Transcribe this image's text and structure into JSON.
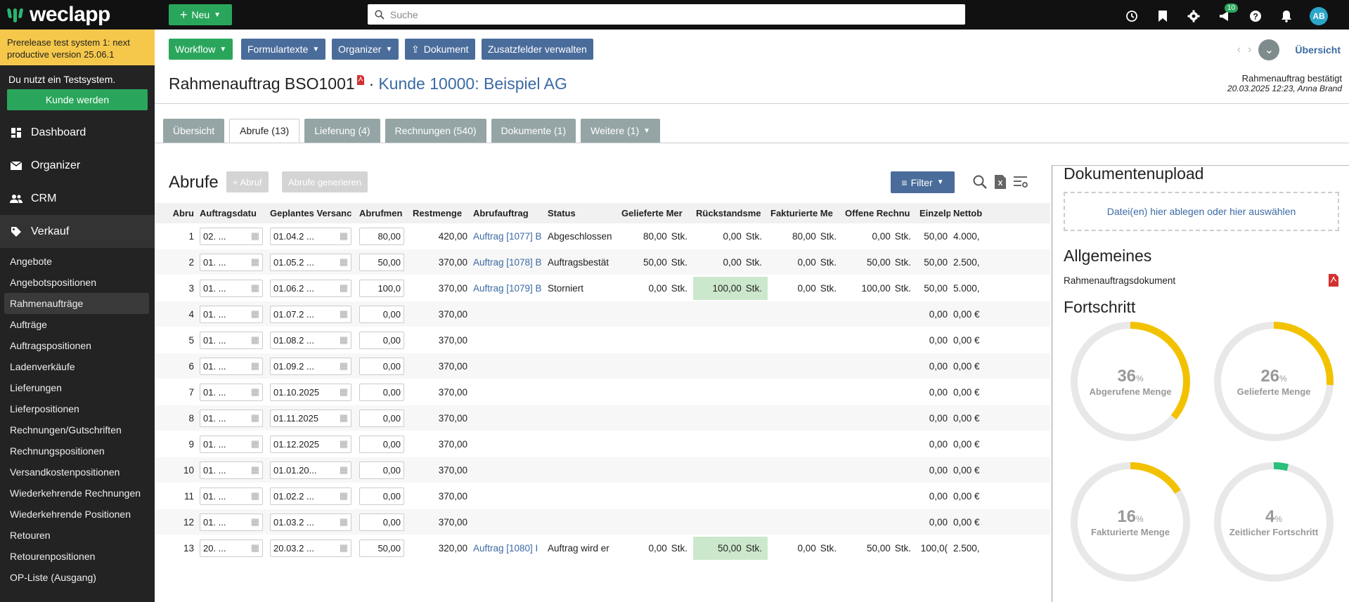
{
  "brand": {
    "name": "weclapp"
  },
  "topbar": {
    "new_label": "Neu",
    "search_placeholder": "Suche",
    "notifications_count": "10",
    "avatar_initials": "AB"
  },
  "sidebar": {
    "notice": "Prerelease test system 1: next productive version 25.06.1",
    "test_text": "Du nutzt ein Testsystem.",
    "cta": "Kunde werden",
    "nav": [
      {
        "label": "Dashboard",
        "icon": "dashboard-icon"
      },
      {
        "label": "Organizer",
        "icon": "mail-icon"
      },
      {
        "label": "CRM",
        "icon": "people-icon"
      },
      {
        "label": "Verkauf",
        "icon": "tag-icon"
      }
    ],
    "sub": [
      "Angebote",
      "Angebotspositionen",
      "Rahmenaufträge",
      "Aufträge",
      "Auftragspositionen",
      "Ladenverkäufe",
      "Lieferungen",
      "Lieferpositionen",
      "Rechnungen/Gutschriften",
      "Rechnungspositionen",
      "Versandkostenpositionen",
      "Wiederkehrende Rechnungen",
      "Wiederkehrende Positionen",
      "Retouren",
      "Retourenpositionen",
      "OP-Liste (Ausgang)"
    ]
  },
  "actions": {
    "workflow": "Workflow",
    "formtexts": "Formulartexte",
    "organizer": "Organizer",
    "document": "Dokument",
    "extra_fields": "Zusatzfelder verwalten",
    "overview": "Übersicht"
  },
  "header": {
    "title": "Rahmenauftrag BSO1001",
    "separator": "·",
    "customer": "Kunde 10000: Beispiel AG",
    "status": "Rahmenauftrag bestätigt",
    "status_date": "20.03.2025 12:23, Anna Brand"
  },
  "tabs": [
    "Übersicht",
    "Abrufe (13)",
    "Lieferung (4)",
    "Rechnungen (540)",
    "Dokumente (1)",
    "Weitere (1)"
  ],
  "section": {
    "title": "Abrufe",
    "add_btn": "+ Abruf",
    "gen_btn": "Abrufe generieren",
    "filter": "Filter"
  },
  "table": {
    "columns": [
      "Abru",
      "Auftragsdatu",
      "Geplantes Versanc",
      "Abrufmen",
      "Restmenge",
      "Abrufauftrag",
      "Status",
      "Gelieferte Mer",
      "Rückstandsme",
      "Fakturierte Me",
      "Offene Rechnu",
      "Einzelp",
      "Nettob"
    ],
    "rows": [
      {
        "n": "1",
        "d1": "02. ...",
        "d2": "01.04.2 ...",
        "qty": "80,00",
        "rest": "420,00",
        "order": "Auftrag [1077] B",
        "status": "Abgeschlossen",
        "del": "80,00",
        "back": "0,00",
        "inv": "80,00",
        "open": "0,00",
        "unit_left": "50,00",
        "net": "4.000,"
      },
      {
        "n": "2",
        "d1": "01. ...",
        "d2": "01.05.2 ...",
        "qty": "50,00",
        "rest": "370,00",
        "order": "Auftrag [1078] B",
        "status": "Auftragsbestät",
        "del": "50,00",
        "back": "0,00",
        "inv": "0,00",
        "open": "50,00",
        "unit_left": "50,00",
        "net": "2.500,"
      },
      {
        "n": "3",
        "d1": "01. ...",
        "d2": "01.06.2 ...",
        "qty": "100,0",
        "rest": "370,00",
        "order": "Auftrag [1079] B",
        "status": "Storniert",
        "del": "0,00",
        "back": "100,00",
        "inv": "0,00",
        "open": "100,00",
        "unit_left": "50,00",
        "net": "5.000,"
      },
      {
        "n": "4",
        "d1": "01. ...",
        "d2": "01.07.2 ...",
        "qty": "0,00",
        "rest": "370,00",
        "order": "",
        "status": "",
        "del": "",
        "back": "",
        "inv": "",
        "open": "",
        "unit_left": "0,00",
        "net": "0,00 €"
      },
      {
        "n": "5",
        "d1": "01. ...",
        "d2": "01.08.2 ...",
        "qty": "0,00",
        "rest": "370,00",
        "order": "",
        "status": "",
        "del": "",
        "back": "",
        "inv": "",
        "open": "",
        "unit_left": "0,00",
        "net": "0,00 €"
      },
      {
        "n": "6",
        "d1": "01. ...",
        "d2": "01.09.2 ...",
        "qty": "0,00",
        "rest": "370,00",
        "order": "",
        "status": "",
        "del": "",
        "back": "",
        "inv": "",
        "open": "",
        "unit_left": "0,00",
        "net": "0,00 €"
      },
      {
        "n": "7",
        "d1": "01. ...",
        "d2": "01.10.2025",
        "qty": "0,00",
        "rest": "370,00",
        "order": "",
        "status": "",
        "del": "",
        "back": "",
        "inv": "",
        "open": "",
        "unit_left": "0,00",
        "net": "0,00 €"
      },
      {
        "n": "8",
        "d1": "01. ...",
        "d2": "01.11.2025",
        "qty": "0,00",
        "rest": "370,00",
        "order": "",
        "status": "",
        "del": "",
        "back": "",
        "inv": "",
        "open": "",
        "unit_left": "0,00",
        "net": "0,00 €"
      },
      {
        "n": "9",
        "d1": "01. ...",
        "d2": "01.12.2025",
        "qty": "0,00",
        "rest": "370,00",
        "order": "",
        "status": "",
        "del": "",
        "back": "",
        "inv": "",
        "open": "",
        "unit_left": "0,00",
        "net": "0,00 €"
      },
      {
        "n": "10",
        "d1": "01. ...",
        "d2": "01.01.20...",
        "qty": "0,00",
        "rest": "370,00",
        "order": "",
        "status": "",
        "del": "",
        "back": "",
        "inv": "",
        "open": "",
        "unit_left": "0,00",
        "net": "0,00 €"
      },
      {
        "n": "11",
        "d1": "01. ...",
        "d2": "01.02.2 ...",
        "qty": "0,00",
        "rest": "370,00",
        "order": "",
        "status": "",
        "del": "",
        "back": "",
        "inv": "",
        "open": "",
        "unit_left": "0,00",
        "net": "0,00 €"
      },
      {
        "n": "12",
        "d1": "01. ...",
        "d2": "01.03.2 ...",
        "qty": "0,00",
        "rest": "370,00",
        "order": "",
        "status": "",
        "del": "",
        "back": "",
        "inv": "",
        "open": "",
        "unit_left": "0,00",
        "net": "0,00 €"
      },
      {
        "n": "13",
        "d1": "20. ...",
        "d2": "20.03.2 ...",
        "qty": "50,00",
        "rest": "320,00",
        "order": "Auftrag [1080] I",
        "status": "Auftrag wird er",
        "del": "0,00",
        "back": "50,00",
        "inv": "0,00",
        "open": "50,00",
        "unit_left": "100,0(",
        "net": "2.500,"
      }
    ],
    "unit": "Stk."
  },
  "panel": {
    "upload_title": "Dokumentenupload",
    "dropzone": "Datei(en) hier ablegen oder hier auswählen",
    "general_title": "Allgemeines",
    "doc_label": "Rahmenauftragsdokument",
    "progress_title": "Fortschritt",
    "gauges": [
      {
        "value": 36,
        "label": "Abgerufene Menge",
        "color": "#f2c200"
      },
      {
        "value": 26,
        "label": "Gelieferte Menge",
        "color": "#f2c200"
      },
      {
        "value": 16,
        "label": "Fakturierte Menge",
        "color": "#f2c200"
      },
      {
        "value": 4,
        "label": "Zeitlicher Fortschritt",
        "color": "#2bbf7a"
      }
    ]
  }
}
